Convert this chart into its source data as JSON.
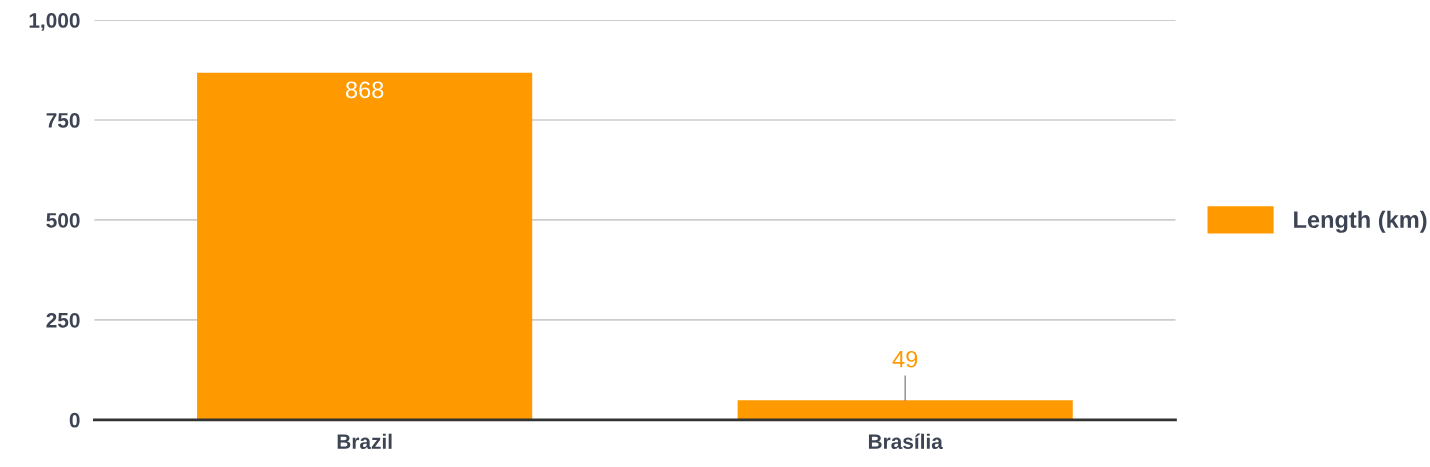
{
  "chart_data": {
    "type": "bar",
    "categories": [
      "Brazil",
      "Brasília"
    ],
    "series": [
      {
        "name": "Length (km)",
        "color": "#ff9900",
        "values": [
          868,
          49
        ]
      }
    ],
    "ylim": [
      0,
      1000
    ],
    "yticks": [
      0,
      250,
      500,
      750,
      {
        "value": 1000,
        "label": "1,000"
      }
    ],
    "grid": "y",
    "legend": "right",
    "data_labels": true
  }
}
